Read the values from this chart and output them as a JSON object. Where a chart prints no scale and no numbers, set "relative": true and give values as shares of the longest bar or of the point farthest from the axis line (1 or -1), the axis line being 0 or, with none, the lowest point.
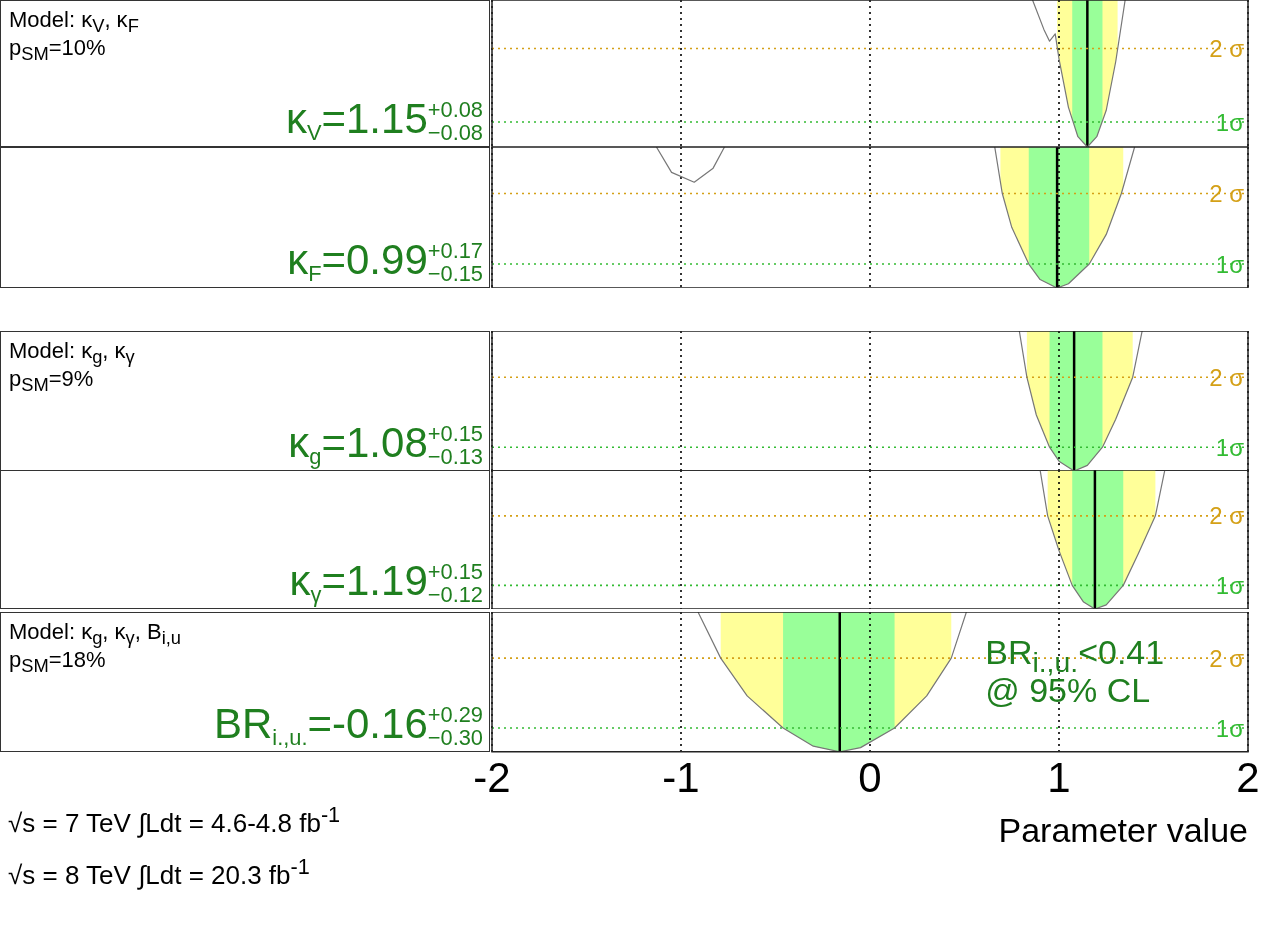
{
  "chart_data": [
    {
      "type": "line",
      "relative": true,
      "grid": "x",
      "annotations": [
        "Model: κ$_{V}$, κ$_{F}$",
        "p$_{SM}$=10%",
        "κ$_{V}$=1.15$^{+0.08}$$_{−0.08}$"
      ],
      "series": [
        {
          "color": "#777777",
          "x": [
            0.86,
            0.92,
            0.95,
            0.98,
            1.0,
            1.05,
            1.1,
            1.15,
            1.2,
            1.25,
            1.3,
            1.35
          ],
          "values": [
            1,
            0.8,
            0.72,
            0.77,
            0.6,
            0.27,
            0.07,
            0,
            0.07,
            0.25,
            0.58,
            1
          ]
        }
      ],
      "xlim": [
        -2,
        2
      ],
      "xticks": [
        -2,
        -1,
        0,
        1,
        2
      ],
      "tick_labels": false,
      "legend": false,
      "bands": [
        {
          "axis": "x",
          "from": 0.99,
          "to": 1.31,
          "color": "#ffff99"
        },
        {
          "axis": "x",
          "from": 1.07,
          "to": 1.23,
          "color": "#99ff99"
        }
      ],
      "ref_lines": [
        {
          "axis": "x",
          "value": 1.15,
          "color": "#000000",
          "line_style": "solid"
        },
        {
          "axis": "y",
          "value": 0.67,
          "label": "2 σ",
          "color": "#d4a017",
          "line_style": "dotted"
        },
        {
          "axis": "y",
          "value": 0.17,
          "label": "1σ",
          "color": "#33bb33",
          "line_style": "dotted"
        }
      ]
    },
    {
      "type": "line",
      "relative": true,
      "grid": "x",
      "annotations": [
        "κ$_{F}$=0.99$^{+0.17}$$_{−0.15}$"
      ],
      "series": [
        {
          "color": "#777777",
          "x": [
            0.66,
            0.7,
            0.75,
            0.84,
            0.9,
            0.99,
            1.05,
            1.16,
            1.25,
            1.33,
            1.4
          ],
          "values": [
            1,
            0.67,
            0.43,
            0.17,
            0.06,
            0,
            0.03,
            0.17,
            0.38,
            0.67,
            1
          ]
        },
        {
          "color": "#777777",
          "x": [
            -1.13,
            -1.05,
            -0.93,
            -0.83,
            -0.77
          ],
          "values": [
            1,
            0.82,
            0.75,
            0.85,
            1
          ]
        }
      ],
      "xlim": [
        -2,
        2
      ],
      "xticks": [
        -2,
        -1,
        0,
        1,
        2
      ],
      "tick_labels": false,
      "legend": false,
      "bands": [
        {
          "axis": "x",
          "from": 0.69,
          "to": 1.34,
          "color": "#ffff99"
        },
        {
          "axis": "x",
          "from": 0.84,
          "to": 1.16,
          "color": "#99ff99"
        }
      ],
      "ref_lines": [
        {
          "axis": "x",
          "value": 0.99,
          "color": "#000000",
          "line_style": "solid"
        },
        {
          "axis": "y",
          "value": 0.67,
          "label": "2 σ",
          "color": "#d4a017",
          "line_style": "dotted"
        },
        {
          "axis": "y",
          "value": 0.17,
          "label": "1σ",
          "color": "#33bb33",
          "line_style": "dotted"
        }
      ]
    },
    {
      "type": "line",
      "relative": true,
      "grid": "x",
      "annotations": [
        "Model: κ$_{g}$, κ$_{γ}$",
        "p$_{SM}$=9%",
        "κ$_{g}$=1.08$^{+0.15}$$_{−0.13}$"
      ],
      "series": [
        {
          "color": "#777777",
          "x": [
            0.79,
            0.83,
            0.88,
            0.95,
            1.0,
            1.08,
            1.15,
            1.23,
            1.3,
            1.39,
            1.44
          ],
          "values": [
            1,
            0.67,
            0.4,
            0.17,
            0.07,
            0,
            0.04,
            0.17,
            0.37,
            0.67,
            1
          ]
        }
      ],
      "xlim": [
        -2,
        2
      ],
      "xticks": [
        -2,
        -1,
        0,
        1,
        2
      ],
      "tick_labels": false,
      "legend": false,
      "bands": [
        {
          "axis": "x",
          "from": 0.83,
          "to": 1.39,
          "color": "#ffff99"
        },
        {
          "axis": "x",
          "from": 0.95,
          "to": 1.23,
          "color": "#99ff99"
        }
      ],
      "ref_lines": [
        {
          "axis": "x",
          "value": 1.08,
          "color": "#000000",
          "line_style": "solid"
        },
        {
          "axis": "y",
          "value": 0.67,
          "label": "2 σ",
          "color": "#d4a017",
          "line_style": "dotted"
        },
        {
          "axis": "y",
          "value": 0.17,
          "label": "1σ",
          "color": "#33bb33",
          "line_style": "dotted"
        }
      ]
    },
    {
      "type": "line",
      "relative": true,
      "grid": "x",
      "annotations": [
        "κ$_{γ}$=1.19$^{+0.15}$$_{−0.12}$"
      ],
      "series": [
        {
          "color": "#777777",
          "x": [
            0.9,
            0.94,
            1.0,
            1.07,
            1.13,
            1.19,
            1.25,
            1.34,
            1.42,
            1.51,
            1.56
          ],
          "values": [
            1,
            0.67,
            0.42,
            0.17,
            0.05,
            0,
            0.03,
            0.17,
            0.4,
            0.67,
            1
          ]
        }
      ],
      "xlim": [
        -2,
        2
      ],
      "xticks": [
        -2,
        -1,
        0,
        1,
        2
      ],
      "tick_labels": false,
      "legend": false,
      "bands": [
        {
          "axis": "x",
          "from": 0.94,
          "to": 1.51,
          "color": "#ffff99"
        },
        {
          "axis": "x",
          "from": 1.07,
          "to": 1.34,
          "color": "#99ff99"
        }
      ],
      "ref_lines": [
        {
          "axis": "x",
          "value": 1.19,
          "color": "#000000",
          "line_style": "solid"
        },
        {
          "axis": "y",
          "value": 0.67,
          "label": "2 σ",
          "color": "#d4a017",
          "line_style": "dotted"
        },
        {
          "axis": "y",
          "value": 0.17,
          "label": "1σ",
          "color": "#33bb33",
          "line_style": "dotted"
        }
      ]
    },
    {
      "type": "line",
      "relative": true,
      "grid": "x",
      "xlabel": "Parameter value",
      "annotations": [
        "Model: κ$_{g}$, κ$_{γ}$, B$_{i,u}$",
        "p$_{SM}$=18%",
        "BR$_{i.,u.}$=-0.16$^{+0.29}$$_{−0.30}$",
        "BR$_{i.,u.}$<0.41",
        "@ 95% CL",
        "√s = 7 TeV ∫Ldt = 4.6-4.8 fb$^{-1}$",
        "√s = 8 TeV ∫Ldt = 20.3 fb$^{-1}$"
      ],
      "series": [
        {
          "color": "#777777",
          "x": [
            -0.91,
            -0.79,
            -0.65,
            -0.46,
            -0.3,
            -0.16,
            -0.05,
            0.13,
            0.3,
            0.43,
            0.51
          ],
          "values": [
            1,
            0.67,
            0.4,
            0.17,
            0.04,
            0,
            0.03,
            0.17,
            0.4,
            0.67,
            1
          ]
        }
      ],
      "xlim": [
        -2,
        2
      ],
      "xticks": [
        -2,
        -1,
        0,
        1,
        2
      ],
      "tick_labels": "x",
      "legend": false,
      "bands": [
        {
          "axis": "x",
          "from": -0.79,
          "to": 0.43,
          "color": "#ffff99"
        },
        {
          "axis": "x",
          "from": -0.46,
          "to": 0.13,
          "color": "#99ff99"
        }
      ],
      "ref_lines": [
        {
          "axis": "x",
          "value": -0.16,
          "color": "#000000",
          "line_style": "solid"
        },
        {
          "axis": "y",
          "value": 0.67,
          "label": "2 σ",
          "color": "#d4a017",
          "line_style": "dotted"
        },
        {
          "axis": "y",
          "value": 0.17,
          "label": "1σ",
          "color": "#33bb33",
          "line_style": "dotted"
        }
      ]
    }
  ]
}
